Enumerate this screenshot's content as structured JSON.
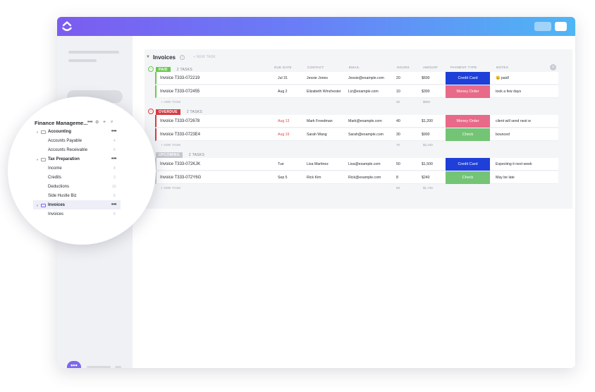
{
  "colors": {
    "paid": "#6bc950",
    "overdue": "#d33d44",
    "upcoming": "#c4c8cf",
    "credit_card": "#1e3fd8",
    "money_order": "#e86a88",
    "check": "#74c476",
    "accent": "#7b68ee"
  },
  "header": {
    "logo_icon": "clickup-logo-icon"
  },
  "list": {
    "title": "Invoices",
    "new_task": "+ NEW TASK",
    "columns": [
      "DUE DATE",
      "CONTACT",
      "EMAIL",
      "HOURS",
      "AMOUNT",
      "PAYMENT TYPE",
      "NOTES"
    ],
    "add_task": "+ ADD TASK",
    "groups": [
      {
        "status": "PAID",
        "count": "2 TASKS",
        "rows": [
          {
            "name": "Invoice T333-072219",
            "due": "Jul 31",
            "contact": "Jessie Jones",
            "email": "Jessie@example.com",
            "hours": "20",
            "amount": "$600",
            "payment": "Credit Card",
            "notes": "😉 paid!"
          },
          {
            "name": "Invoice T333-072455",
            "due": "Aug 2",
            "contact": "Elizabeth Winchester",
            "email": "Liz@example.com",
            "hours": "10",
            "amount": "$300",
            "payment": "Money Order",
            "notes": "took a few days"
          }
        ],
        "sum_hours": "30",
        "sum_amount": "$900"
      },
      {
        "status": "OVERDUE",
        "count": "2 TASKS",
        "rows": [
          {
            "name": "Invoice T333-072678",
            "due": "Aug 13",
            "contact": "Mark Freedman",
            "email": "Mark@example.com",
            "hours": "40",
            "amount": "$1,200",
            "payment": "Money Order",
            "notes": "client will send next w"
          },
          {
            "name": "Invoice T333-0723E4",
            "due": "Aug 19",
            "contact": "Sarah Wang",
            "email": "Sarah@example.com",
            "hours": "30",
            "amount": "$900",
            "payment": "Check",
            "notes": "bounced"
          }
        ],
        "sum_hours": "70",
        "sum_amount": "$2,100"
      },
      {
        "status": "UPCOMING",
        "count": "2 TASKS",
        "rows": [
          {
            "name": "Invoice T333-072KJK",
            "due": "Tue",
            "contact": "Lisa Martinez",
            "email": "Lisa@example.com",
            "hours": "50",
            "amount": "$1,500",
            "payment": "Credit Card",
            "notes": "Expecting it next week"
          },
          {
            "name": "Invoice T333-072Y6G",
            "due": "Sep 5",
            "contact": "Rick Kim",
            "email": "Rick@example.com",
            "hours": "8",
            "amount": "$240",
            "payment": "Check",
            "notes": "May be late"
          }
        ],
        "sum_hours": "58",
        "sum_amount": "$1,740"
      }
    ]
  },
  "sidebar_zoom": {
    "space_title": "Finance Manageme...",
    "dots": "•••",
    "items": [
      {
        "label": "Accounting",
        "type": "folder",
        "count": "•••"
      },
      {
        "label": "Accounts Payable",
        "type": "list",
        "count": "4"
      },
      {
        "label": "Accounts Receivable",
        "type": "list",
        "count": "6"
      },
      {
        "label": "Tax Preparation",
        "type": "folder",
        "count": "•••"
      },
      {
        "label": "Income",
        "type": "list",
        "count": "4"
      },
      {
        "label": "Credits",
        "type": "list",
        "count": "3"
      },
      {
        "label": "Deductions",
        "type": "list",
        "count": "10"
      },
      {
        "label": "Side Hustle Biz",
        "type": "list",
        "count": "6"
      },
      {
        "label": "Invoices",
        "type": "folder",
        "count": "•••"
      },
      {
        "label": "Invoices",
        "type": "list",
        "count": "6"
      }
    ]
  },
  "chat": {
    "icon": "chat-bubble-icon",
    "label": "•••"
  }
}
